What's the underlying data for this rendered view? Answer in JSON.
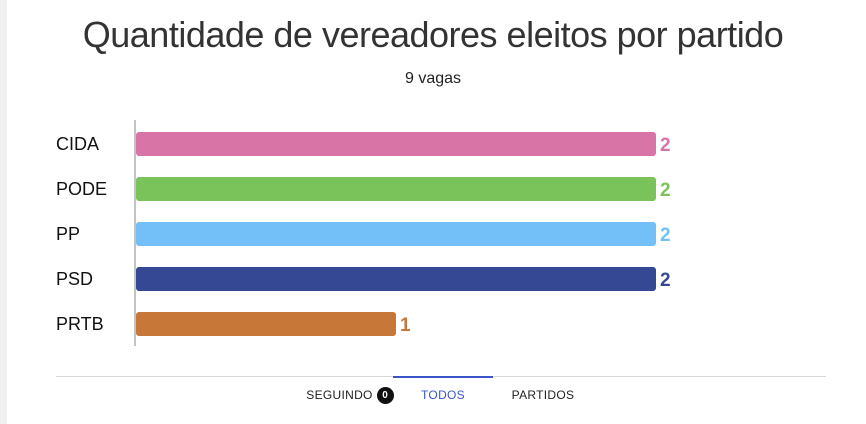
{
  "header": {
    "title": "Quantidade de vereadores eleitos por partido",
    "subtitle": "9 vagas"
  },
  "chart_data": {
    "type": "bar",
    "orientation": "horizontal",
    "title": "Quantidade de vereadores eleitos por partido",
    "subtitle": "9 vagas",
    "categories": [
      "CIDA",
      "PODE",
      "PP",
      "PSD",
      "PRTB"
    ],
    "values": [
      2,
      2,
      2,
      2,
      1
    ],
    "colors": [
      "#d874a6",
      "#7ac35a",
      "#72c0f7",
      "#344893",
      "#c77838"
    ],
    "xlim": [
      0,
      2
    ],
    "grid": false
  },
  "tabs": {
    "seguindo_label": "SEGUINDO",
    "seguindo_count": "0",
    "todos_label": "TODOS",
    "partidos_label": "PARTIDOS",
    "active": "TODOS",
    "accent_color": "#3a55c8"
  }
}
